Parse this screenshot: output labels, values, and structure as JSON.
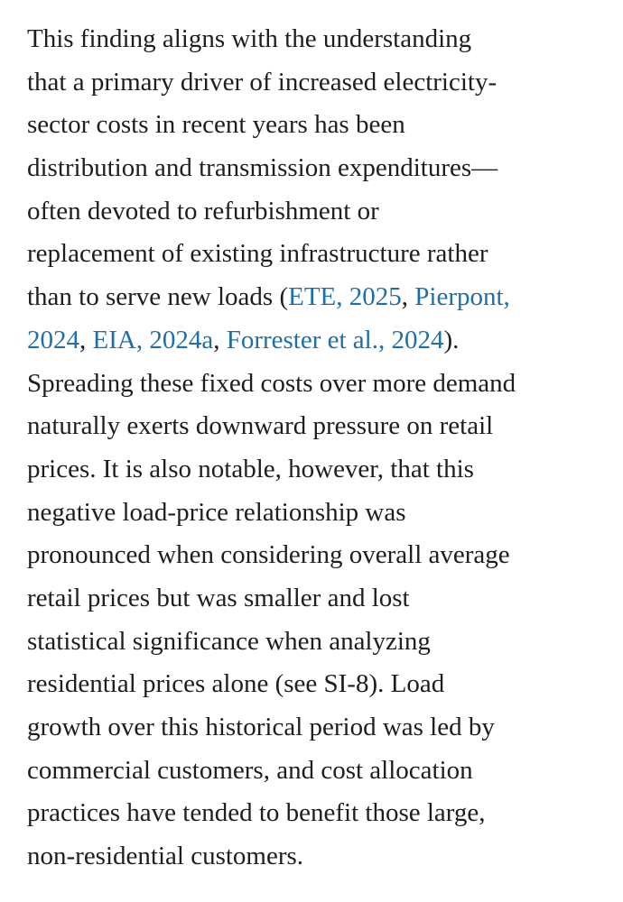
{
  "paragraph": {
    "link_color": "#1f6fa7",
    "lines": [
      [
        "This finding aligns with the understanding"
      ],
      [
        "that a primary driver of increased electricity-"
      ],
      [
        "sector costs in recent years has been"
      ],
      [
        "distribution and transmission expenditures—"
      ],
      [
        "often devoted to refurbishment or"
      ],
      [
        "replacement of existing infrastructure rather"
      ],
      [
        "than to serve new loads (",
        {
          "text": "ETE, 2025",
          "link": true
        },
        ", ",
        {
          "text": "Pierpont,",
          "link": true
        }
      ],
      [
        {
          "text": "2024",
          "link": true
        },
        ", ",
        {
          "text": "EIA, 2024a",
          "link": true
        },
        ", ",
        {
          "text": "Forrester et al., 2024",
          "link": true
        },
        ")."
      ],
      [
        "Spreading these fixed costs over more demand"
      ],
      [
        "naturally exerts downward pressure on retail"
      ],
      [
        "prices. It is also notable, however, that this"
      ],
      [
        "negative load-price relationship was"
      ],
      [
        "pronounced when considering overall average"
      ],
      [
        "retail prices but was smaller and lost"
      ],
      [
        "statistical significance when analyzing"
      ],
      [
        "residential prices alone (see SI-8). Load"
      ],
      [
        "growth over this historical period was led by"
      ],
      [
        "commercial customers, and cost allocation"
      ],
      [
        "practices have tended to benefit those large,"
      ],
      [
        "non-residential customers."
      ]
    ]
  }
}
